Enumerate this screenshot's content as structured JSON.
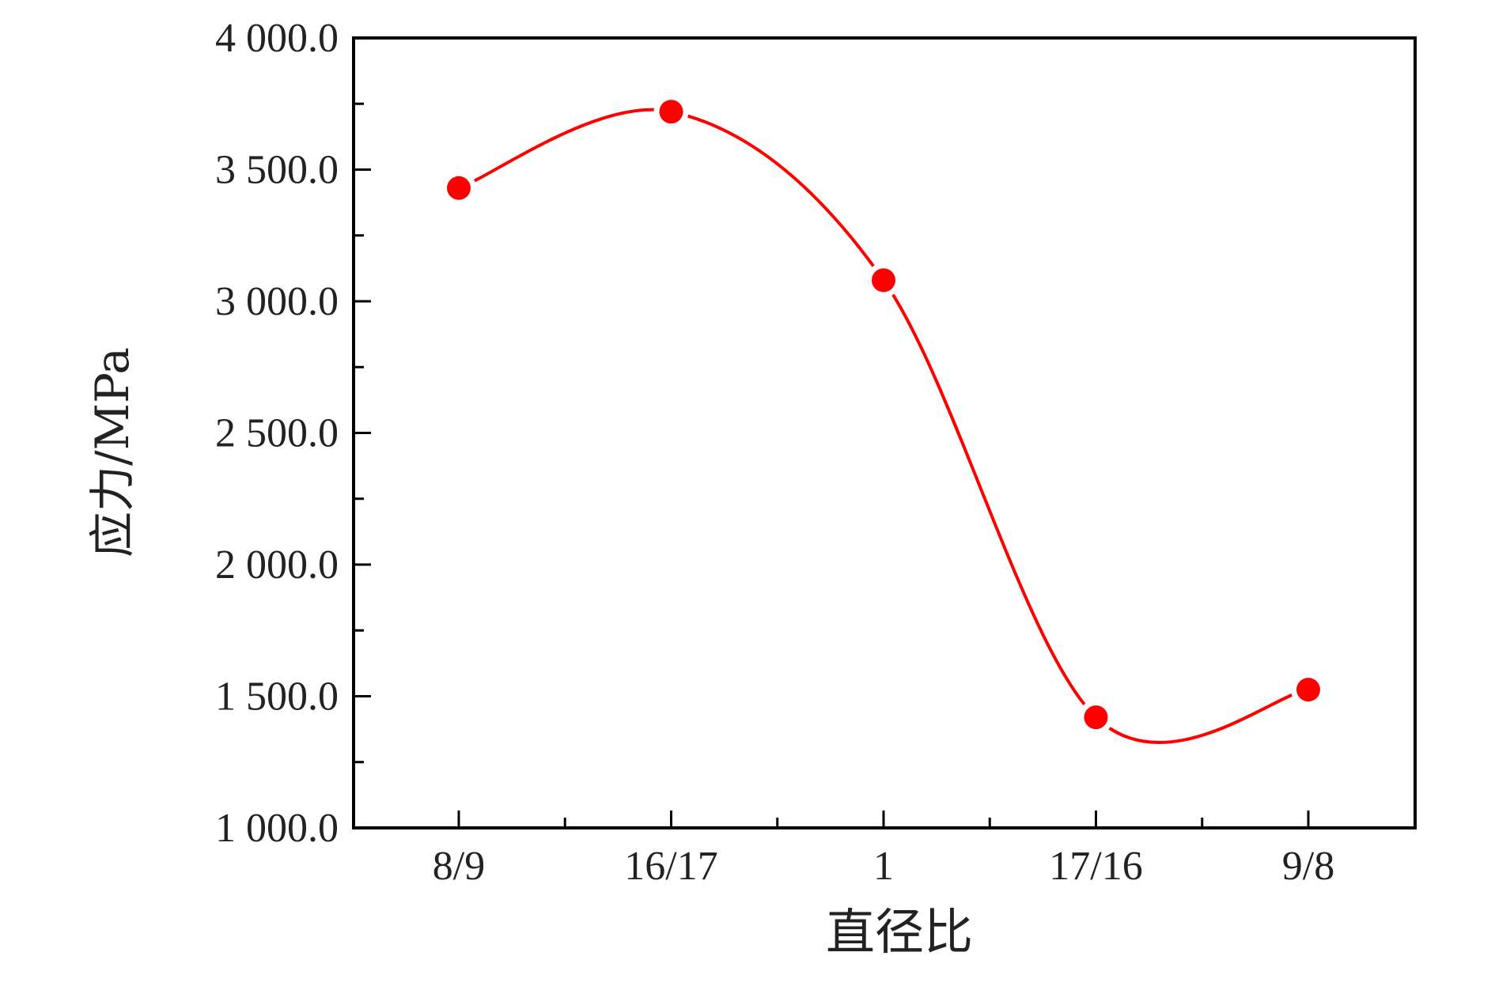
{
  "chart_data": {
    "type": "line",
    "title": "",
    "xlabel": "直径比",
    "ylabel": "应力/MPa",
    "categories": [
      "8/9",
      "16/17",
      "1",
      "17/16",
      "9/8"
    ],
    "series": [
      {
        "values": [
          3430,
          3720,
          3080,
          1420,
          1525
        ],
        "color": "#ff0000",
        "line": "smooth",
        "marker": "filled-circle"
      }
    ],
    "ylim": [
      1000,
      4000
    ],
    "yticks": [
      1000,
      1500,
      2000,
      2500,
      3000,
      3500,
      4000
    ],
    "ytick_labels": [
      "1 000.0",
      "1 500.0",
      "2 000.0",
      "2 500.0",
      "3 000.0",
      "3 500.0",
      "4 000.0"
    ],
    "y_minor_step": 250,
    "x_minor_ticks": "midpoints",
    "grid": false,
    "legend": "none",
    "frame": "box"
  }
}
